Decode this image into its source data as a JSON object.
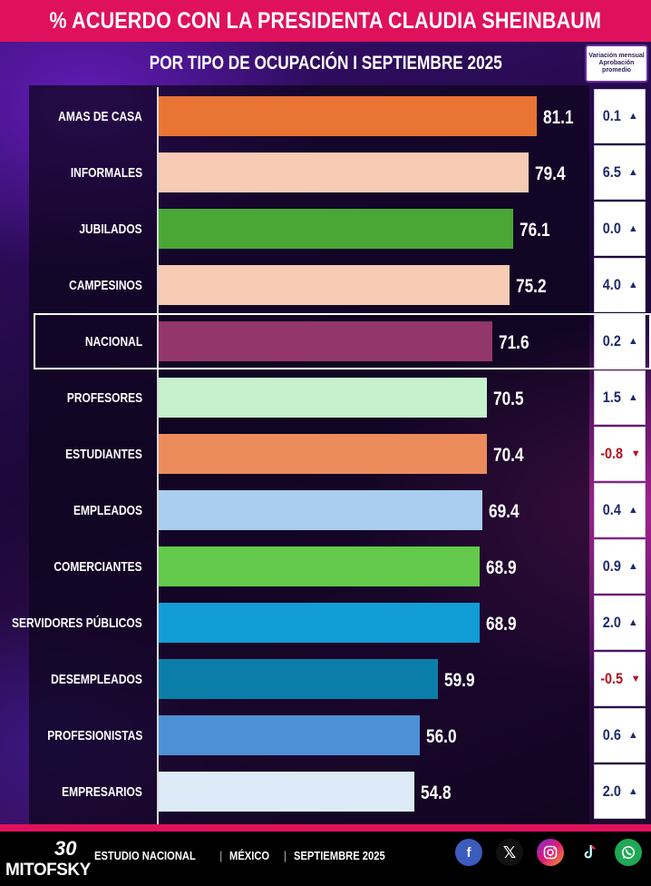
{
  "header": {
    "title": "% ACUERDO CON LA PRESIDENTA CLAUDIA SHEINBAUM",
    "subtitle": "POR TIPO DE OCUPACIÓN I SEPTIEMBRE 2025"
  },
  "variation_header": [
    "Variación mensual",
    "Aprobación",
    "promedio"
  ],
  "chart_data": {
    "type": "bar",
    "orientation": "horizontal",
    "title": "% ACUERDO CON LA PRESIDENTA CLAUDIA SHEINBAUM",
    "subtitle": "POR TIPO DE OCUPACIÓN I SEPTIEMBRE 2025",
    "xlim": [
      0,
      100
    ],
    "highlighted_category": "NACIONAL",
    "rows": [
      {
        "label": "AMAS DE CASA",
        "value": 81.1,
        "value_label": "81.1",
        "color": "#ea7434",
        "variation": "0.1",
        "direction": "up"
      },
      {
        "label": "INFORMALES",
        "value": 79.4,
        "value_label": "79.4",
        "color": "#f7cab3",
        "variation": "6.5",
        "direction": "up"
      },
      {
        "label": "JUBILADOS",
        "value": 76.1,
        "value_label": "76.1",
        "color": "#4aa735",
        "variation": "0.0",
        "direction": "up"
      },
      {
        "label": "CAMPESINOS",
        "value": 75.2,
        "value_label": "75.2",
        "color": "#f7cab3",
        "variation": "4.0",
        "direction": "up"
      },
      {
        "label": "NACIONAL",
        "value": 71.6,
        "value_label": "71.6",
        "color": "#93366c",
        "variation": "0.2",
        "direction": "up"
      },
      {
        "label": "PROFESORES",
        "value": 70.5,
        "value_label": "70.5",
        "color": "#c6f1cc",
        "variation": "1.5",
        "direction": "up"
      },
      {
        "label": "ESTUDIANTES",
        "value": 70.4,
        "value_label": "70.4",
        "color": "#ec8c5c",
        "variation": "-0.8",
        "direction": "down"
      },
      {
        "label": "EMPLEADOS",
        "value": 69.4,
        "value_label": "69.4",
        "color": "#a9cdee",
        "variation": "0.4",
        "direction": "up"
      },
      {
        "label": "COMERCIANTES",
        "value": 68.9,
        "value_label": "68.9",
        "color": "#62c94a",
        "variation": "0.9",
        "direction": "up"
      },
      {
        "label": "SERVIDORES PÚBLICOS",
        "value": 68.9,
        "value_label": "68.9",
        "color": "#129dd7",
        "variation": "2.0",
        "direction": "up"
      },
      {
        "label": "DESEMPLEADOS",
        "value": 59.9,
        "value_label": "59.9",
        "color": "#0a7ea9",
        "variation": "-0.5",
        "direction": "down"
      },
      {
        "label": "PROFESIONISTAS",
        "value": 56.0,
        "value_label": "56.0",
        "color": "#4d90d6",
        "variation": "0.6",
        "direction": "up"
      },
      {
        "label": "EMPRESARIOS",
        "value": 54.8,
        "value_label": "54.8",
        "color": "#ddeaf8",
        "variation": "2.0",
        "direction": "up"
      }
    ]
  },
  "colors": {
    "title_bar": "#e0115c",
    "variation_up": "#1d2a6b",
    "variation_down": "#b3121d"
  },
  "footer": {
    "logo_number": "30",
    "logo_text": "MITOFSKY",
    "items": [
      "ESTUDIO NACIONAL",
      "MÉXICO",
      "SEPTIEMBRE 2025"
    ],
    "social_icons": [
      "facebook-icon",
      "x-icon",
      "instagram-icon",
      "tiktok-icon",
      "whatsapp-icon"
    ]
  }
}
